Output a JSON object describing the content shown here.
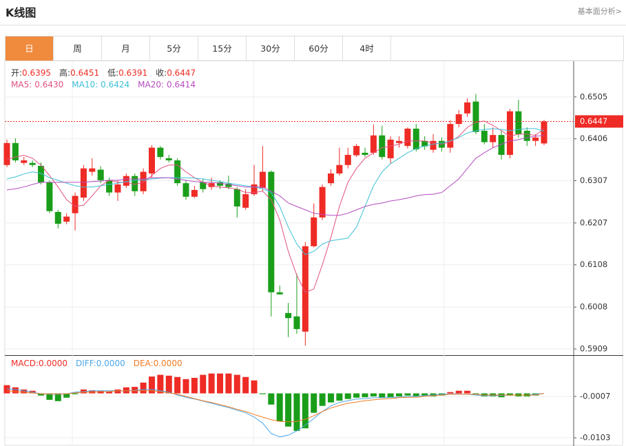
{
  "header": {
    "title": "K线图",
    "link": "基本面分析>"
  },
  "tabs": [
    "日",
    "周",
    "月",
    "5分",
    "15分",
    "30分",
    "60分",
    "4时"
  ],
  "active_tab": 0,
  "chart_data": [
    {
      "type": "candlestick",
      "up_color": "#ee2b25",
      "down_color": "#1a9e1a",
      "readout": [
        {
          "label": "开:",
          "value": "0.6395"
        },
        {
          "label": "高:",
          "value": "0.6451"
        },
        {
          "label": "低:",
          "value": "0.6391"
        },
        {
          "label": "收:",
          "value": "0.6447"
        }
      ],
      "open": [
        0.6344,
        0.6396,
        0.6349,
        0.6349,
        0.6342,
        0.6303,
        0.6233,
        0.621,
        0.623,
        0.6267,
        0.6328,
        0.6333,
        0.6308,
        0.6279,
        0.6295,
        0.6318,
        0.6282,
        0.6324,
        0.6385,
        0.636,
        0.6355,
        0.6301,
        0.6269,
        0.6303,
        0.6292,
        0.6303,
        0.63,
        0.6287,
        0.6243,
        0.6275,
        0.629,
        0.6328,
        0.6043,
        0.5994,
        0.5986,
        0.595,
        0.6152,
        0.622,
        0.6301,
        0.6324,
        0.6344,
        0.6367,
        0.6373,
        0.6373,
        0.6414,
        0.636,
        0.6396,
        0.6389,
        0.643,
        0.6401,
        0.638,
        0.6401,
        0.6385,
        0.6441,
        0.6466,
        0.6494,
        0.6425,
        0.6398,
        0.6415,
        0.6368,
        0.6471,
        0.6425,
        0.6401,
        0.6395
      ],
      "high": [
        0.6404,
        0.6407,
        0.6363,
        0.6355,
        0.635,
        0.6308,
        0.6238,
        0.623,
        0.6279,
        0.6344,
        0.636,
        0.6341,
        0.6314,
        0.6308,
        0.6324,
        0.6324,
        0.6336,
        0.6391,
        0.6389,
        0.6368,
        0.636,
        0.6308,
        0.6295,
        0.6311,
        0.6314,
        0.6308,
        0.6319,
        0.6292,
        0.6287,
        0.6344,
        0.6389,
        0.6331,
        0.6059,
        0.6018,
        0.6087,
        0.6162,
        0.6253,
        0.6298,
        0.6334,
        0.6385,
        0.6385,
        0.6394,
        0.6385,
        0.644,
        0.6437,
        0.6412,
        0.6412,
        0.6433,
        0.6441,
        0.6412,
        0.6417,
        0.6409,
        0.645,
        0.6474,
        0.6502,
        0.6512,
        0.6441,
        0.6433,
        0.6425,
        0.6477,
        0.6498,
        0.6433,
        0.6417,
        0.6451
      ],
      "low": [
        0.6339,
        0.635,
        0.6344,
        0.6339,
        0.6298,
        0.623,
        0.6194,
        0.6204,
        0.6189,
        0.6259,
        0.6319,
        0.6301,
        0.6271,
        0.6259,
        0.629,
        0.6271,
        0.6275,
        0.6314,
        0.6357,
        0.635,
        0.6295,
        0.6262,
        0.6266,
        0.6279,
        0.6285,
        0.6287,
        0.6287,
        0.622,
        0.6238,
        0.6271,
        0.6282,
        0.5986,
        0.6038,
        0.5937,
        0.5945,
        0.5917,
        0.6149,
        0.6214,
        0.6295,
        0.6319,
        0.6336,
        0.6363,
        0.6363,
        0.6368,
        0.6357,
        0.6347,
        0.6385,
        0.6383,
        0.6376,
        0.638,
        0.6373,
        0.6376,
        0.6373,
        0.6433,
        0.6458,
        0.6417,
        0.6393,
        0.6385,
        0.6357,
        0.636,
        0.6409,
        0.6389,
        0.6389,
        0.6391
      ],
      "close": [
        0.6396,
        0.6355,
        0.6355,
        0.6344,
        0.6303,
        0.6235,
        0.6205,
        0.6222,
        0.6271,
        0.6336,
        0.6336,
        0.6308,
        0.6279,
        0.6298,
        0.6318,
        0.6282,
        0.6328,
        0.6385,
        0.6363,
        0.6355,
        0.6301,
        0.6269,
        0.6285,
        0.6287,
        0.6301,
        0.6295,
        0.6292,
        0.6246,
        0.6275,
        0.6298,
        0.6328,
        0.6043,
        0.6038,
        0.5982,
        0.5956,
        0.6152,
        0.622,
        0.6292,
        0.6324,
        0.6344,
        0.6368,
        0.6389,
        0.6368,
        0.6414,
        0.6363,
        0.6404,
        0.6401,
        0.643,
        0.6381,
        0.6388,
        0.6401,
        0.6385,
        0.6441,
        0.6464,
        0.6492,
        0.6422,
        0.6398,
        0.6415,
        0.6368,
        0.6471,
        0.6417,
        0.6401,
        0.6409,
        0.6447
      ],
      "series": [
        {
          "name": "MA5:",
          "readout": "0.6430",
          "color": "#e2507f",
          "values": [
            0.6357,
            0.6363,
            0.6367,
            0.636,
            0.6344,
            0.6319,
            0.6292,
            0.6262,
            0.6246,
            0.6249,
            0.6271,
            0.6295,
            0.6308,
            0.6303,
            0.6303,
            0.6298,
            0.6303,
            0.6319,
            0.6336,
            0.6344,
            0.6344,
            0.6328,
            0.6314,
            0.6303,
            0.6295,
            0.6292,
            0.629,
            0.6287,
            0.6279,
            0.6279,
            0.6282,
            0.6262,
            0.6214,
            0.614,
            0.6083,
            0.6043,
            0.6051,
            0.6108,
            0.6173,
            0.6246,
            0.6303,
            0.6336,
            0.636,
            0.6373,
            0.6385,
            0.6389,
            0.6393,
            0.6401,
            0.6401,
            0.6401,
            0.6396,
            0.6393,
            0.6399,
            0.6412,
            0.6433,
            0.6445,
            0.6448,
            0.6438,
            0.6425,
            0.6412,
            0.6417,
            0.6417,
            0.6414,
            0.643
          ]
        },
        {
          "name": "MA10:",
          "readout": "0.6424",
          "color": "#3cbfd6",
          "values": [
            0.6311,
            0.6316,
            0.6323,
            0.6328,
            0.6324,
            0.6314,
            0.6308,
            0.6301,
            0.6295,
            0.6292,
            0.6292,
            0.6295,
            0.6298,
            0.6301,
            0.6305,
            0.6308,
            0.6308,
            0.6311,
            0.6313,
            0.6314,
            0.6314,
            0.6314,
            0.6313,
            0.6311,
            0.6308,
            0.6305,
            0.6301,
            0.6298,
            0.6295,
            0.6292,
            0.6288,
            0.6279,
            0.6246,
            0.6197,
            0.6157,
            0.6132,
            0.614,
            0.6157,
            0.6165,
            0.6168,
            0.6171,
            0.6197,
            0.6246,
            0.6295,
            0.6328,
            0.6347,
            0.636,
            0.6373,
            0.6383,
            0.6389,
            0.6393,
            0.6396,
            0.6401,
            0.6409,
            0.642,
            0.6425,
            0.6428,
            0.643,
            0.6428,
            0.6425,
            0.6428,
            0.643,
            0.643,
            0.6424
          ]
        },
        {
          "name": "MA20:",
          "readout": "0.6414",
          "color": "#b54cbf",
          "values": [
            0.6285,
            0.6288,
            0.6292,
            0.6298,
            0.6303,
            0.6303,
            0.6303,
            0.6303,
            0.6303,
            0.6303,
            0.6305,
            0.6306,
            0.6308,
            0.6308,
            0.6311,
            0.6311,
            0.6311,
            0.6314,
            0.6314,
            0.6314,
            0.6311,
            0.6308,
            0.6305,
            0.6303,
            0.6303,
            0.6301,
            0.6298,
            0.6295,
            0.6292,
            0.6292,
            0.6292,
            0.6282,
            0.6271,
            0.6254,
            0.6246,
            0.6238,
            0.623,
            0.6227,
            0.6225,
            0.6225,
            0.623,
            0.6238,
            0.6246,
            0.6251,
            0.6254,
            0.6259,
            0.6262,
            0.6266,
            0.6271,
            0.6274,
            0.6275,
            0.6279,
            0.6295,
            0.6311,
            0.6336,
            0.636,
            0.6373,
            0.6385,
            0.6393,
            0.6401,
            0.6404,
            0.6409,
            0.6412,
            0.6414
          ]
        }
      ],
      "last_price": 0.6447,
      "last_color": "#ee2b25",
      "ylim": [
        0.5896,
        0.6591
      ],
      "yticks": [
        0.6505,
        0.6406,
        0.6307,
        0.6207,
        0.6108,
        0.6008,
        0.5909
      ],
      "grid": true
    },
    {
      "type": "macd",
      "ylim": [
        -0.0122,
        0.0087
      ],
      "yticks": [
        -0.0007,
        -0.0103
      ],
      "grid": true,
      "series": [
        {
          "name": "MACD:",
          "readout": "0.0000",
          "type": "bar",
          "color": "#ee2b25",
          "up_color": "#ee2b25",
          "down_color": "#1a9e1a",
          "values": [
            0.0019,
            0.0014,
            0.0009,
            0.0006,
            -0.0005,
            -0.0015,
            -0.0018,
            -0.001,
            -0.0002,
            0.0009,
            0.0007,
            0.0006,
            0.0004,
            0.0009,
            0.0014,
            0.0015,
            0.0025,
            0.0039,
            0.0043,
            0.0041,
            0.0038,
            0.0033,
            0.0036,
            0.0043,
            0.0046,
            0.0046,
            0.0046,
            0.0043,
            0.0038,
            0.003,
            -0.0002,
            -0.0026,
            -0.0065,
            -0.0077,
            -0.0087,
            -0.0081,
            -0.0045,
            -0.0029,
            -0.0021,
            -0.0017,
            -0.0013,
            -0.001,
            -0.0009,
            -0.0007,
            -0.001,
            -0.0009,
            -0.0007,
            -0.0005,
            -0.0007,
            -0.0005,
            -0.0007,
            -0.0005,
            0.0003,
            0.0006,
            0.0006,
            -0.0002,
            -0.0007,
            -0.0007,
            -0.0009,
            -0.0005,
            -0.0007,
            -0.0007,
            -0.0005,
            0
          ]
        },
        {
          "name": "DIFF:",
          "readout": "0.0000",
          "type": "line",
          "color": "#4ba6e6",
          "values": [
            0.0011,
            0.0009,
            0.0006,
            0.0003,
            -0.0001,
            -0.0002,
            -0.0002,
            -0.0001,
            0.0003,
            0.0004,
            0.0006,
            0.0006,
            0.0006,
            0.0006,
            0.0006,
            0.0007,
            0.0009,
            0.0009,
            0.0006,
            0.0003,
            -0.0004,
            -0.0009,
            -0.0013,
            -0.0018,
            -0.0023,
            -0.0028,
            -0.0033,
            -0.0039,
            -0.0045,
            -0.0055,
            -0.0069,
            -0.0093,
            -0.0101,
            -0.0097,
            -0.0087,
            -0.0074,
            -0.0058,
            -0.0042,
            -0.0029,
            -0.0021,
            -0.0017,
            -0.0013,
            -0.0012,
            -0.001,
            -0.001,
            -0.0009,
            -0.0009,
            -0.0007,
            -0.0007,
            -0.0005,
            -0.0004,
            -0.0002,
            -0.0001,
            -0.0001,
            -0.0002,
            -0.0004,
            -0.0005,
            -0.0005,
            -0.0005,
            -0.0004,
            -0.0004,
            -0.0004,
            -0.0002,
            0
          ]
        },
        {
          "name": "DEA:",
          "readout": "0.0000",
          "type": "line",
          "color": "#f07a22",
          "values": [
            0.0006,
            0.0004,
            0.0003,
            0.0001,
            -0.0001,
            -0.0001,
            -0.0001,
            -0.0001,
            0.0001,
            0.0003,
            0.0003,
            0.0004,
            0.0004,
            0.0006,
            0.0006,
            0.0006,
            0.0006,
            0.0006,
            0.0004,
            0.0001,
            -0.0002,
            -0.0007,
            -0.0012,
            -0.0017,
            -0.0021,
            -0.0026,
            -0.0031,
            -0.0037,
            -0.0042,
            -0.0049,
            -0.0055,
            -0.0061,
            -0.0065,
            -0.0066,
            -0.0065,
            -0.006,
            -0.0052,
            -0.0042,
            -0.0034,
            -0.0028,
            -0.0023,
            -0.002,
            -0.0017,
            -0.0015,
            -0.0013,
            -0.0012,
            -0.001,
            -0.0009,
            -0.0009,
            -0.0007,
            -0.0005,
            -0.0004,
            -0.0002,
            -0.0002,
            -0.0002,
            -0.0002,
            -0.0004,
            -0.0004,
            -0.0004,
            -0.0004,
            -0.0004,
            -0.0004,
            -0.0004,
            0
          ]
        }
      ]
    }
  ]
}
